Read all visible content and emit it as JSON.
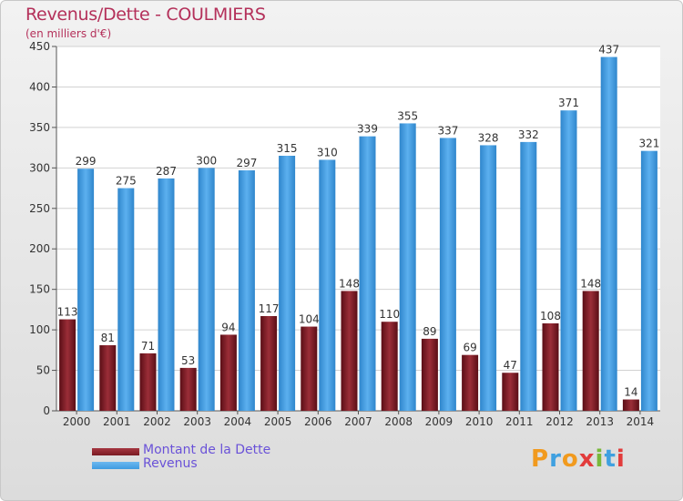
{
  "header": {
    "title": "Revenus/Dette - COULMIERS",
    "unit": "(en milliers d'€)"
  },
  "colors": {
    "debt": "#7a1a22",
    "revenue": "#3f9be0",
    "title": "#b4305a",
    "legend_text": "#6a52d8"
  },
  "logo": {
    "letters": [
      "P",
      "r",
      "o",
      "x",
      "i",
      "t",
      "i"
    ]
  },
  "chart_data": {
    "type": "bar",
    "title": "Revenus/Dette - COULMIERS",
    "ylabel": "(en milliers d'€)",
    "categories": [
      "2000",
      "2001",
      "2002",
      "2003",
      "2004",
      "2005",
      "2006",
      "2007",
      "2008",
      "2009",
      "2010",
      "2011",
      "2012",
      "2013",
      "2014"
    ],
    "series": [
      {
        "name": "Montant de la Dette",
        "values": [
          113,
          81,
          71,
          53,
          94,
          117,
          104,
          148,
          110,
          89,
          69,
          47,
          108,
          148,
          14
        ]
      },
      {
        "name": "Revenus",
        "values": [
          299,
          275,
          287,
          300,
          297,
          315,
          310,
          339,
          355,
          337,
          328,
          332,
          371,
          437,
          321
        ]
      }
    ],
    "ylim": [
      0,
      450
    ],
    "yticks": [
      0,
      50,
      100,
      150,
      200,
      250,
      300,
      350,
      400,
      450
    ],
    "grid": true,
    "legend_position": "bottom-left"
  }
}
